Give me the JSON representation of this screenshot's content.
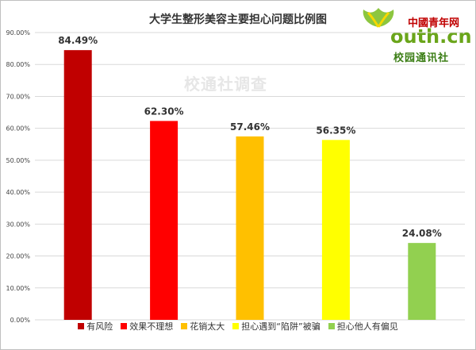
{
  "chart_data": {
    "type": "bar",
    "title": "大学生整形美容主要担心问题比例图",
    "categories": [
      "有风险",
      "效果不理想",
      "花销太大",
      "担心遇到“陷阱”被骗",
      "担心他人有偏见"
    ],
    "values": [
      84.49,
      62.3,
      57.46,
      56.35,
      24.08
    ],
    "value_labels": [
      "84.49%",
      "62.30%",
      "57.46%",
      "56.35%",
      "24.08%"
    ],
    "colors": [
      "#c00000",
      "#ff0000",
      "#ffc000",
      "#ffff00",
      "#92d050"
    ],
    "ylim": [
      0,
      90
    ],
    "yticks": [
      0,
      10,
      20,
      30,
      40,
      50,
      60,
      70,
      80,
      90
    ],
    "ytick_labels": [
      "0.00%",
      "10.00%",
      "20.00%",
      "30.00%",
      "40.00%",
      "50.00%",
      "60.00%",
      "70.00%",
      "80.00%",
      "90.00%"
    ],
    "grid": true,
    "legend_position": "bottom"
  },
  "watermark": "校通社调查",
  "logo": {
    "top": "中國青年网",
    "main": "outh.cn",
    "sub": "校园通讯社"
  }
}
